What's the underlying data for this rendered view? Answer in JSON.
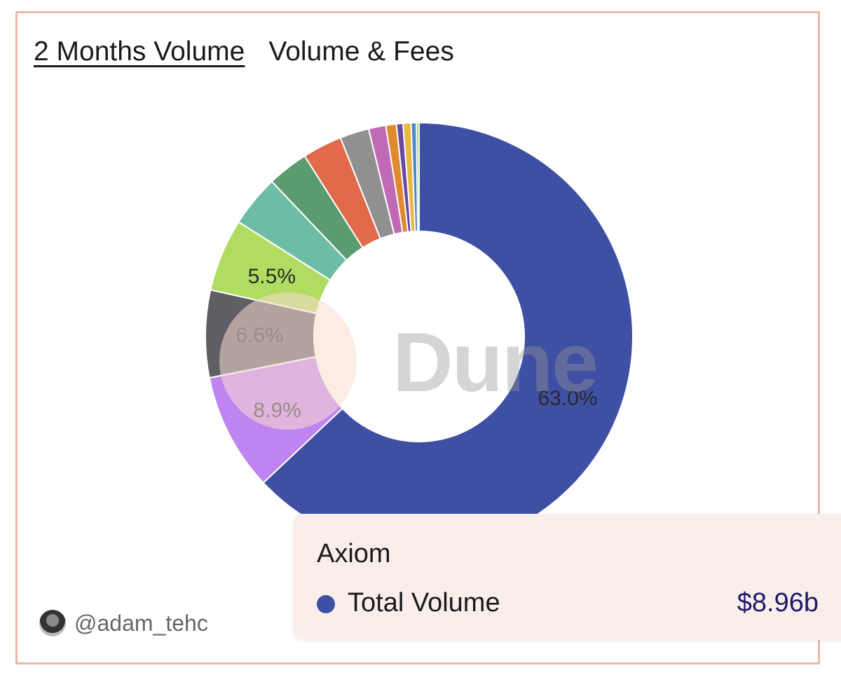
{
  "tabs": [
    {
      "label": "2 Months Volume",
      "active": true
    },
    {
      "label": "Volume & Fees",
      "active": false
    }
  ],
  "watermark": "Dune",
  "author": "@adam_tehc",
  "tooltip": {
    "title": "Axiom",
    "series": "Total Volume",
    "value": "$8.96b",
    "color": "#3f4fa3"
  },
  "chart_data": {
    "type": "pie",
    "donut": true,
    "series_name": "Total Volume",
    "categories": [
      "Axiom",
      "",
      "",
      "",
      "",
      "",
      "",
      "",
      "",
      "",
      "",
      "",
      "",
      ""
    ],
    "values": [
      63.0,
      8.9,
      6.6,
      5.5,
      3.9,
      3.1,
      3.0,
      2.2,
      1.3,
      0.8,
      0.5,
      0.6,
      0.4,
      0.2
    ],
    "labels": [
      "63.0%",
      "8.9%",
      "6.6%",
      "5.5%",
      "",
      "",
      "",
      "",
      "",
      "",
      "",
      "",
      "",
      ""
    ],
    "colors": [
      "#3f4fa3",
      "#c084f0",
      "#5e5e64",
      "#b0dc62",
      "#6dbca6",
      "#5a9b70",
      "#e06a4a",
      "#909090",
      "#c06ab5",
      "#e08a30",
      "#6a4aa0",
      "#e8b840",
      "#4a8ac8",
      "#9ac860"
    ]
  }
}
